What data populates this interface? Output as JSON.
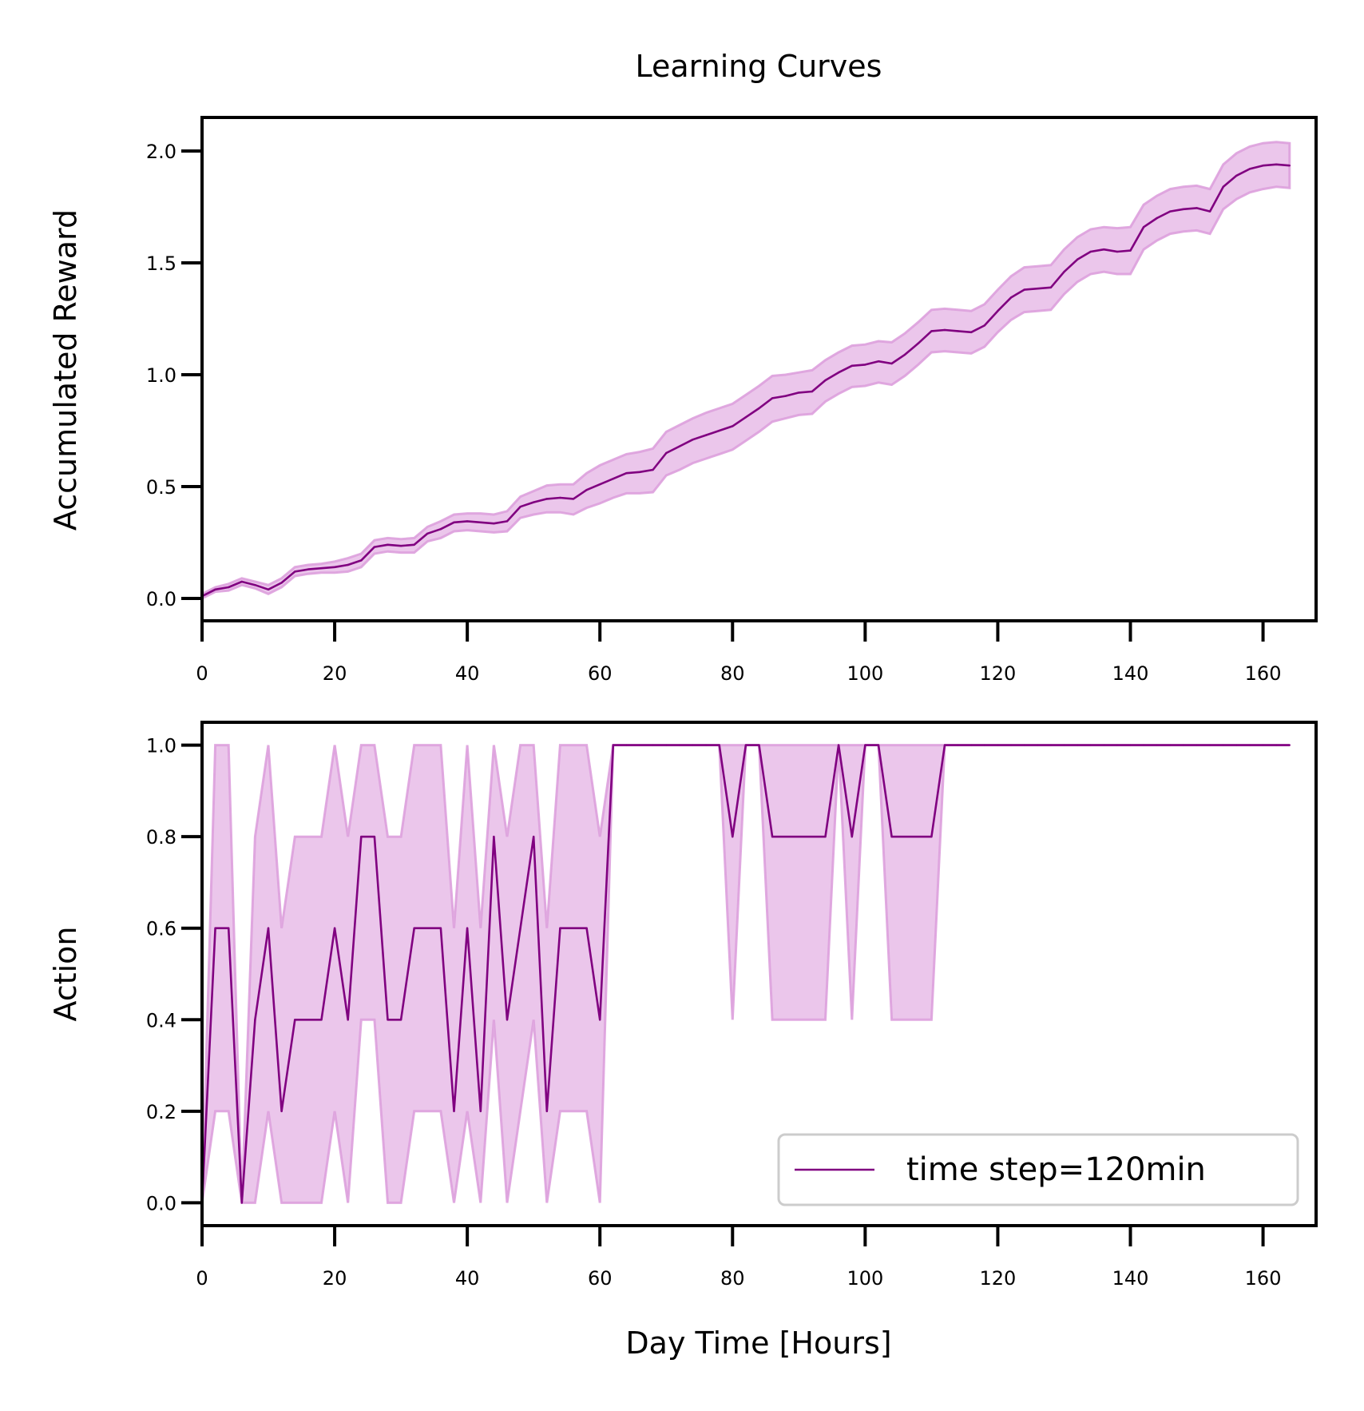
{
  "figure": {
    "title": "Learning Curves",
    "legend_label": "time step=120min",
    "colors": {
      "line": "#800080",
      "band": "#dda0dd"
    }
  },
  "chart_data": [
    {
      "type": "line",
      "title": "Learning Curves",
      "xlabel": "",
      "ylabel": "Accumulated Reward",
      "xlim": [
        0,
        168
      ],
      "ylim": [
        -0.1,
        2.15
      ],
      "xticks": [
        0,
        20,
        40,
        60,
        80,
        100,
        120,
        140,
        160
      ],
      "xtick_labels": [
        "0",
        "20",
        "40",
        "60",
        "80",
        "100",
        "120",
        "140",
        "160"
      ],
      "yticks": [
        0.0,
        0.5,
        1.0,
        1.5,
        2.0
      ],
      "ytick_labels": [
        "0.0",
        "0.5",
        "1.0",
        "1.5",
        "2.0"
      ],
      "grid": false,
      "series": [
        {
          "name": "time step=120min",
          "x": [
            0,
            2,
            4,
            6,
            8,
            10,
            12,
            14,
            16,
            18,
            20,
            22,
            24,
            26,
            28,
            30,
            32,
            34,
            36,
            38,
            40,
            42,
            44,
            46,
            48,
            50,
            52,
            54,
            56,
            58,
            60,
            62,
            64,
            66,
            68,
            70,
            72,
            74,
            76,
            78,
            80,
            82,
            84,
            86,
            88,
            90,
            92,
            94,
            96,
            98,
            100,
            102,
            104,
            106,
            108,
            110,
            112,
            114,
            116,
            118,
            120,
            122,
            124,
            126,
            128,
            130,
            132,
            134,
            136,
            138,
            140,
            142,
            144,
            146,
            148,
            150,
            152,
            154,
            156,
            158,
            160,
            162,
            164
          ],
          "mean": [
            0.01,
            0.04,
            0.05,
            0.075,
            0.06,
            0.04,
            0.07,
            0.12,
            0.13,
            0.135,
            0.14,
            0.15,
            0.17,
            0.23,
            0.24,
            0.235,
            0.24,
            0.29,
            0.31,
            0.34,
            0.345,
            0.34,
            0.335,
            0.345,
            0.41,
            0.43,
            0.445,
            0.45,
            0.445,
            0.485,
            0.51,
            0.535,
            0.56,
            0.565,
            0.575,
            0.65,
            0.68,
            0.71,
            0.73,
            0.75,
            0.77,
            0.81,
            0.85,
            0.895,
            0.905,
            0.92,
            0.925,
            0.975,
            1.01,
            1.04,
            1.045,
            1.06,
            1.05,
            1.09,
            1.14,
            1.195,
            1.2,
            1.195,
            1.19,
            1.22,
            1.285,
            1.345,
            1.38,
            1.385,
            1.39,
            1.46,
            1.515,
            1.55,
            1.56,
            1.55,
            1.555,
            1.66,
            1.7,
            1.73,
            1.74,
            1.745,
            1.73,
            1.84,
            1.89,
            1.92,
            1.935,
            1.94,
            1.935
          ],
          "lower": [
            0.0,
            0.03,
            0.035,
            0.06,
            0.045,
            0.02,
            0.05,
            0.1,
            0.11,
            0.115,
            0.115,
            0.12,
            0.14,
            0.2,
            0.21,
            0.205,
            0.205,
            0.255,
            0.27,
            0.3,
            0.305,
            0.3,
            0.295,
            0.3,
            0.36,
            0.375,
            0.385,
            0.385,
            0.375,
            0.405,
            0.425,
            0.45,
            0.47,
            0.47,
            0.475,
            0.55,
            0.575,
            0.605,
            0.625,
            0.645,
            0.665,
            0.705,
            0.745,
            0.79,
            0.805,
            0.82,
            0.825,
            0.88,
            0.915,
            0.945,
            0.95,
            0.965,
            0.955,
            0.995,
            1.045,
            1.1,
            1.105,
            1.1,
            1.095,
            1.125,
            1.19,
            1.245,
            1.28,
            1.285,
            1.29,
            1.36,
            1.415,
            1.45,
            1.46,
            1.45,
            1.45,
            1.56,
            1.6,
            1.63,
            1.64,
            1.645,
            1.63,
            1.74,
            1.785,
            1.815,
            1.83,
            1.84,
            1.835
          ],
          "upper": [
            0.02,
            0.05,
            0.065,
            0.09,
            0.075,
            0.06,
            0.09,
            0.14,
            0.15,
            0.155,
            0.165,
            0.18,
            0.2,
            0.26,
            0.27,
            0.265,
            0.27,
            0.32,
            0.345,
            0.375,
            0.38,
            0.38,
            0.375,
            0.39,
            0.455,
            0.48,
            0.505,
            0.51,
            0.51,
            0.56,
            0.595,
            0.62,
            0.645,
            0.655,
            0.67,
            0.745,
            0.775,
            0.805,
            0.83,
            0.85,
            0.87,
            0.91,
            0.95,
            0.995,
            1.0,
            1.01,
            1.02,
            1.065,
            1.1,
            1.13,
            1.135,
            1.15,
            1.145,
            1.185,
            1.235,
            1.29,
            1.295,
            1.29,
            1.285,
            1.315,
            1.38,
            1.44,
            1.48,
            1.485,
            1.49,
            1.56,
            1.615,
            1.65,
            1.66,
            1.655,
            1.66,
            1.76,
            1.8,
            1.83,
            1.84,
            1.845,
            1.83,
            1.94,
            1.99,
            2.02,
            2.035,
            2.04,
            2.035
          ]
        }
      ]
    },
    {
      "type": "line",
      "title": "",
      "xlabel": "Day Time [Hours]",
      "ylabel": "Action",
      "xlim": [
        0,
        168
      ],
      "ylim": [
        -0.05,
        1.05
      ],
      "xticks": [
        0,
        20,
        40,
        60,
        80,
        100,
        120,
        140,
        160
      ],
      "xtick_labels": [
        "0",
        "20",
        "40",
        "60",
        "80",
        "100",
        "120",
        "140",
        "160"
      ],
      "yticks": [
        0.0,
        0.2,
        0.4,
        0.6,
        0.8,
        1.0
      ],
      "ytick_labels": [
        "0.0",
        "0.2",
        "0.4",
        "0.6",
        "0.8",
        "1.0"
      ],
      "grid": false,
      "legend": {
        "position": "lower right",
        "entries": [
          "time step=120min"
        ]
      },
      "series": [
        {
          "name": "time step=120min",
          "x": [
            0,
            2,
            4,
            6,
            8,
            10,
            12,
            14,
            16,
            18,
            20,
            22,
            24,
            26,
            28,
            30,
            32,
            34,
            36,
            38,
            40,
            42,
            44,
            46,
            48,
            50,
            52,
            54,
            56,
            58,
            60,
            62,
            64,
            66,
            68,
            70,
            72,
            74,
            76,
            78,
            80,
            82,
            84,
            86,
            88,
            90,
            92,
            94,
            96,
            98,
            100,
            102,
            104,
            106,
            108,
            110,
            112,
            114,
            116,
            118,
            120,
            122,
            124,
            126,
            128,
            130,
            132,
            134,
            136,
            138,
            140,
            142,
            144,
            146,
            148,
            150,
            152,
            154,
            156,
            158,
            160,
            162,
            164
          ],
          "mean": [
            0.0,
            0.6,
            0.6,
            0.0,
            0.4,
            0.6,
            0.2,
            0.4,
            0.4,
            0.4,
            0.6,
            0.4,
            0.8,
            0.8,
            0.4,
            0.4,
            0.6,
            0.6,
            0.6,
            0.2,
            0.6,
            0.2,
            0.8,
            0.4,
            0.6,
            0.8,
            0.2,
            0.6,
            0.6,
            0.6,
            0.4,
            1.0,
            1.0,
            1.0,
            1.0,
            1.0,
            1.0,
            1.0,
            1.0,
            1.0,
            0.8,
            1.0,
            1.0,
            0.8,
            0.8,
            0.8,
            0.8,
            0.8,
            1.0,
            0.8,
            1.0,
            1.0,
            0.8,
            0.8,
            0.8,
            0.8,
            1.0,
            1.0,
            1.0,
            1.0,
            1.0,
            1.0,
            1.0,
            1.0,
            1.0,
            1.0,
            1.0,
            1.0,
            1.0,
            1.0,
            1.0,
            1.0,
            1.0,
            1.0,
            1.0,
            1.0,
            1.0,
            1.0,
            1.0,
            1.0,
            1.0,
            1.0,
            1.0
          ],
          "lower": [
            0.0,
            0.2,
            0.2,
            0.0,
            0.0,
            0.2,
            0.0,
            0.0,
            0.0,
            0.0,
            0.2,
            0.0,
            0.4,
            0.4,
            0.0,
            0.0,
            0.2,
            0.2,
            0.2,
            0.0,
            0.2,
            0.0,
            0.4,
            0.0,
            0.2,
            0.4,
            0.0,
            0.2,
            0.2,
            0.2,
            0.0,
            1.0,
            1.0,
            1.0,
            1.0,
            1.0,
            1.0,
            1.0,
            1.0,
            1.0,
            0.4,
            1.0,
            1.0,
            0.4,
            0.4,
            0.4,
            0.4,
            0.4,
            1.0,
            0.4,
            1.0,
            1.0,
            0.4,
            0.4,
            0.4,
            0.4,
            1.0,
            1.0,
            1.0,
            1.0,
            1.0,
            1.0,
            1.0,
            1.0,
            1.0,
            1.0,
            1.0,
            1.0,
            1.0,
            1.0,
            1.0,
            1.0,
            1.0,
            1.0,
            1.0,
            1.0,
            1.0,
            1.0,
            1.0,
            1.0,
            1.0,
            1.0,
            1.0
          ],
          "upper": [
            0.0,
            1.0,
            1.0,
            0.0,
            0.8,
            1.0,
            0.6,
            0.8,
            0.8,
            0.8,
            1.0,
            0.8,
            1.0,
            1.0,
            0.8,
            0.8,
            1.0,
            1.0,
            1.0,
            0.6,
            1.0,
            0.6,
            1.0,
            0.8,
            1.0,
            1.0,
            0.6,
            1.0,
            1.0,
            1.0,
            0.8,
            1.0,
            1.0,
            1.0,
            1.0,
            1.0,
            1.0,
            1.0,
            1.0,
            1.0,
            1.0,
            1.0,
            1.0,
            1.0,
            1.0,
            1.0,
            1.0,
            1.0,
            1.0,
            1.0,
            1.0,
            1.0,
            1.0,
            1.0,
            1.0,
            1.0,
            1.0,
            1.0,
            1.0,
            1.0,
            1.0,
            1.0,
            1.0,
            1.0,
            1.0,
            1.0,
            1.0,
            1.0,
            1.0,
            1.0,
            1.0,
            1.0,
            1.0,
            1.0,
            1.0,
            1.0,
            1.0,
            1.0,
            1.0,
            1.0,
            1.0,
            1.0,
            1.0
          ]
        }
      ]
    }
  ]
}
